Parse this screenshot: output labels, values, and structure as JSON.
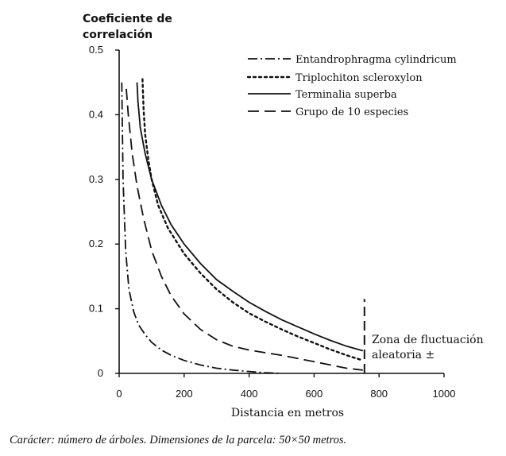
{
  "chart_data": {
    "type": "line",
    "ylabel_lines": [
      "Coeficiente de",
      "correlación"
    ],
    "xlabel": "Distancia en metros",
    "xlim": [
      0,
      1000
    ],
    "ylim": [
      0,
      0.5
    ],
    "x_ticks": [
      "0",
      "200",
      "400",
      "600",
      "800",
      "1000"
    ],
    "y_ticks": [
      "0",
      "0.1",
      "0.2",
      "0.3",
      "0.4",
      "0.5"
    ],
    "legend_position": "top-right",
    "grid": false,
    "series": [
      {
        "name": "Entandrophragma cylindricum",
        "style": "dash-dot",
        "x": [
          8,
          12,
          20,
          30,
          45,
          60,
          80,
          100,
          130,
          160,
          200,
          250,
          300,
          350,
          400,
          450,
          500
        ],
        "y": [
          0.45,
          0.3,
          0.19,
          0.13,
          0.095,
          0.075,
          0.06,
          0.048,
          0.036,
          0.028,
          0.02,
          0.013,
          0.008,
          0.005,
          0.003,
          0.001,
          0.0
        ]
      },
      {
        "name": "Triplochiton scleroxylon",
        "style": "dotted",
        "x": [
          72,
          75,
          80,
          90,
          100,
          120,
          150,
          200,
          250,
          300,
          350,
          400,
          450,
          500,
          550,
          600,
          650,
          700,
          750
        ],
        "y": [
          0.455,
          0.41,
          0.37,
          0.33,
          0.3,
          0.26,
          0.225,
          0.185,
          0.155,
          0.13,
          0.11,
          0.093,
          0.08,
          0.068,
          0.057,
          0.047,
          0.037,
          0.028,
          0.02
        ]
      },
      {
        "name": "Terminalia superba",
        "style": "solid",
        "x": [
          55,
          58,
          65,
          80,
          100,
          130,
          160,
          200,
          250,
          300,
          350,
          400,
          450,
          500,
          550,
          600,
          650,
          700,
          750
        ],
        "y": [
          0.45,
          0.42,
          0.38,
          0.34,
          0.3,
          0.26,
          0.23,
          0.2,
          0.17,
          0.145,
          0.127,
          0.11,
          0.096,
          0.083,
          0.072,
          0.061,
          0.051,
          0.042,
          0.035
        ]
      },
      {
        "name": "Grupo de 10 especies",
        "style": "dashed",
        "x": [
          22,
          28,
          40,
          55,
          75,
          100,
          130,
          160,
          200,
          250,
          300,
          350,
          400,
          450,
          500,
          550,
          600,
          650,
          700,
          750
        ],
        "y": [
          0.44,
          0.4,
          0.34,
          0.29,
          0.24,
          0.19,
          0.15,
          0.12,
          0.092,
          0.068,
          0.052,
          0.042,
          0.036,
          0.032,
          0.028,
          0.023,
          0.018,
          0.013,
          0.008,
          0.005
        ]
      }
    ],
    "annotation": {
      "lines": [
        "Zona de fluctuación",
        "aleatoria  ±"
      ],
      "x": 755,
      "y_from": 0.0,
      "y_to": 0.115
    }
  },
  "caption": "Carácter: número de árboles. Dimensiones de la parcela: 50×50 metros."
}
